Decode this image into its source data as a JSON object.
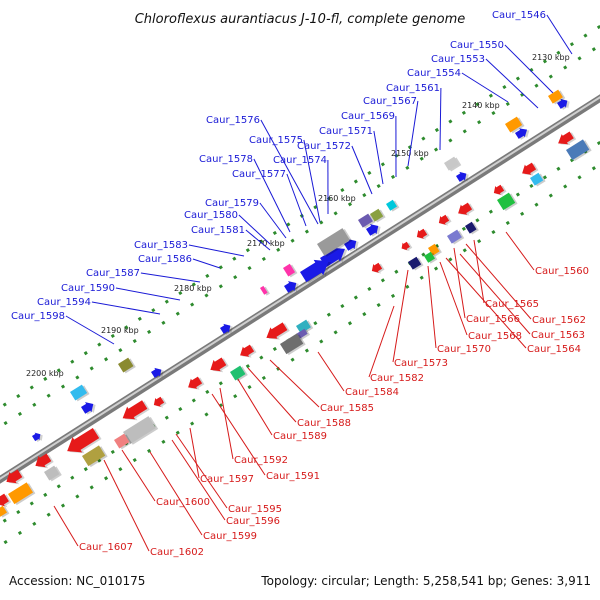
{
  "title": "Chloroflexus aurantiacus J-10-fl, complete genome",
  "footer": {
    "accession": "Accession: NC_010175",
    "topology": "Topology: circular; Length: 5,258,541 bp; Genes: 3,911"
  },
  "ticks": [
    "2130 kbp",
    "2140 kbp",
    "2150 kbp",
    "2160 kbp",
    "2170 kbp",
    "2180 kbp",
    "2190 kbp",
    "2200 kbp"
  ],
  "genes_forward": [
    "Caur_1546",
    "Caur_1550",
    "Caur_1553",
    "Caur_1554",
    "Caur_1561",
    "Caur_1567",
    "Caur_1569",
    "Caur_1571",
    "Caur_1572",
    "Caur_1574",
    "Caur_1575",
    "Caur_1576",
    "Caur_1577",
    "Caur_1578",
    "Caur_1579",
    "Caur_1580",
    "Caur_1581",
    "Caur_1583",
    "Caur_1586",
    "Caur_1587",
    "Caur_1590",
    "Caur_1594",
    "Caur_1598"
  ],
  "genes_reverse": [
    "Caur_1560",
    "Caur_1565",
    "Caur_1562",
    "Caur_1566",
    "Caur_1563",
    "Caur_1564",
    "Caur_1568",
    "Caur_1570",
    "Caur_1573",
    "Caur_1582",
    "Caur_1584",
    "Caur_1585",
    "Caur_1588",
    "Caur_1589",
    "Caur_1592",
    "Caur_1591",
    "Caur_1597",
    "Caur_1595",
    "Caur_1596",
    "Caur_1600",
    "Caur_1599",
    "Caur_1607",
    "Caur_1602"
  ],
  "colors": {
    "forward_label": "#1a1ad6",
    "reverse_label": "#d61a1a",
    "forward_gene": "#1a1ae6",
    "reverse_gene": "#e61a1a",
    "backbone": "#8c8c8c",
    "dots": "#2e8b2e"
  }
}
